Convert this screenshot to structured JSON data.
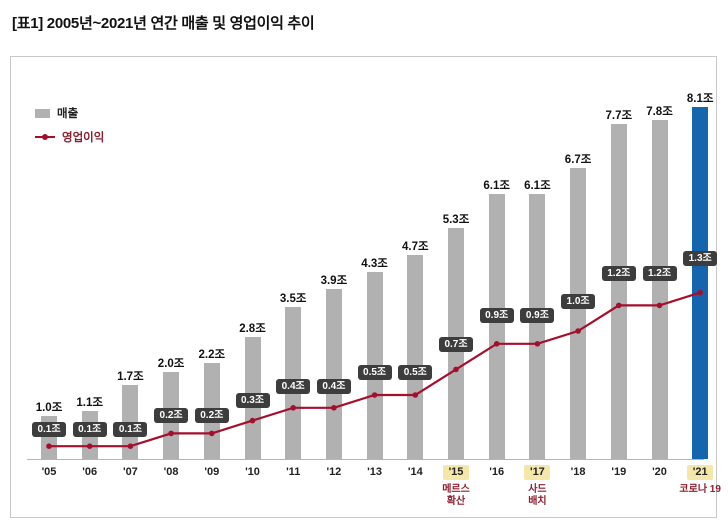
{
  "title": "[표1] 2005년~2021년 연간 매출 및 영업이익 추이",
  "legend": {
    "revenue": "매출",
    "profit": "영업이익"
  },
  "chart_data": {
    "type": "bar+line",
    "title": "2005년~2021년 연간 매출 및 영업이익 추이",
    "unit": "조",
    "categories": [
      "'05",
      "'06",
      "'07",
      "'08",
      "'09",
      "'10",
      "'11",
      "'12",
      "'13",
      "'14",
      "'15",
      "'16",
      "'17",
      "'18",
      "'19",
      "'20",
      "'21"
    ],
    "series": [
      {
        "name": "매출",
        "type": "bar",
        "values": [
          1.0,
          1.1,
          1.7,
          2.0,
          2.2,
          2.8,
          3.5,
          3.9,
          4.3,
          4.7,
          5.3,
          6.1,
          6.1,
          6.7,
          7.7,
          7.8,
          8.1
        ],
        "labels": [
          "1.0조",
          "1.1조",
          "1.7조",
          "2.0조",
          "2.2조",
          "2.8조",
          "3.5조",
          "3.9조",
          "4.3조",
          "4.7조",
          "5.3조",
          "6.1조",
          "6.1조",
          "6.7조",
          "7.7조",
          "7.8조",
          "8.1조"
        ]
      },
      {
        "name": "영업이익",
        "type": "line",
        "values": [
          0.1,
          0.1,
          0.1,
          0.2,
          0.2,
          0.3,
          0.4,
          0.4,
          0.5,
          0.5,
          0.7,
          0.9,
          0.9,
          1.0,
          1.2,
          1.2,
          1.3
        ],
        "labels": [
          "0.1조",
          "0.1조",
          "0.1조",
          "0.2조",
          "0.2조",
          "0.3조",
          "0.4조",
          "0.4조",
          "0.5조",
          "0.5조",
          "0.7조",
          "0.9조",
          "0.9조",
          "1.0조",
          "1.2조",
          "1.2조",
          "1.3조"
        ]
      }
    ],
    "annotations": [
      {
        "category": "'15",
        "lines": [
          "메르스",
          "확산"
        ]
      },
      {
        "category": "'17",
        "lines": [
          "사드",
          "배치"
        ]
      },
      {
        "category": "'21",
        "lines": [
          "코로나 19"
        ]
      }
    ],
    "highlighted_categories": [
      "'15",
      "'17",
      "'21"
    ],
    "highlight_last_bar": true,
    "grid": false,
    "legend_position": "top-left",
    "colors": {
      "bar": "#b1b1b1",
      "bar_highlight": "#1465ae",
      "line": "#a50f2e",
      "badge_bg": "#3d3d3d",
      "badge_text": "#ffffff",
      "axis": "#b5b5b5",
      "highlight_bg": "#f3e8a9",
      "annotation": "#8d1f2f"
    }
  }
}
